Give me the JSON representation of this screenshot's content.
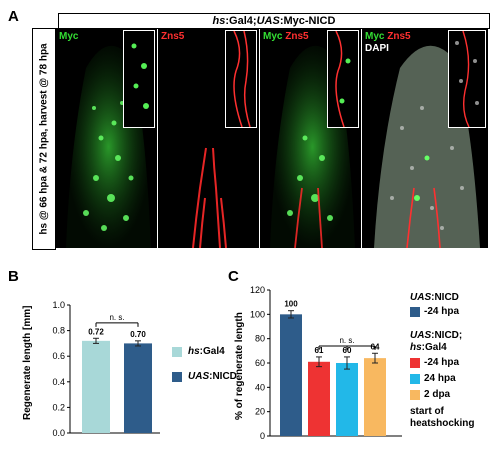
{
  "panels": {
    "a_label": "A",
    "b_label": "B",
    "c_label": "C"
  },
  "panel_a": {
    "header_italic": "hs",
    "header_part1": ":Gal4;",
    "header_italic2": "UAS",
    "header_part2": ":Myc-NICD",
    "side_label": "hs @ 66 hpa & 72 hpa, harvest @ 78 hpa",
    "channels": [
      {
        "label": "Myc"
      },
      {
        "label": "Zns5"
      },
      {
        "label_green": "Myc",
        "label_red": "Zns5"
      },
      {
        "label_green": "Myc",
        "label_red": "Zns5",
        "label_white": "DAPI"
      }
    ],
    "colors": {
      "green": "#33dd33",
      "red": "#ff3030"
    }
  },
  "chart_data": [
    {
      "type": "bar",
      "panel": "B",
      "ylabel": "Regenerate length [mm]",
      "ylim": [
        0,
        1.0
      ],
      "yticks": [
        "0.0",
        "0.2",
        "0.4",
        "0.6",
        "0.8",
        "1.0"
      ],
      "categories": [
        "hs:Gal4",
        "UAS:NICD"
      ],
      "values": [
        0.72,
        0.7
      ],
      "data_labels": [
        "0.72",
        "0.70"
      ],
      "colors": [
        "#a8d8d8",
        "#2e5c8a"
      ],
      "significance": "n. s.",
      "legend": [
        {
          "italic": "hs",
          "rest": ":Gal4"
        },
        {
          "italic": "UAS",
          "rest": ":NICD"
        }
      ]
    },
    {
      "type": "bar",
      "panel": "C",
      "ylabel": "% of regenerate length",
      "ylim": [
        0,
        120
      ],
      "yticks": [
        "0",
        "20",
        "40",
        "60",
        "80",
        "100",
        "120"
      ],
      "categories": [
        "UAS:NICD -24 hpa",
        "-24 hpa",
        "24 hpa",
        "2 dpa"
      ],
      "values": [
        100,
        61,
        60,
        64
      ],
      "data_labels": [
        "100",
        "61",
        "60",
        "64"
      ],
      "colors": [
        "#2e5c8a",
        "#ee3333",
        "#22b8e8",
        "#f8b860"
      ],
      "significance": "n. s.",
      "legend_group1": {
        "italic": "UAS",
        "rest": ":NICD",
        "line2": "-24 hpa"
      },
      "legend_group2": {
        "italic": "UAS",
        "rest": ":NICD;",
        "italic2": "hs",
        "rest2": ":Gal4"
      },
      "legend_items": [
        "-24 hpa",
        "24 hpa",
        "2 dpa"
      ],
      "legend_note": [
        "start of",
        "heatshocking"
      ]
    }
  ]
}
